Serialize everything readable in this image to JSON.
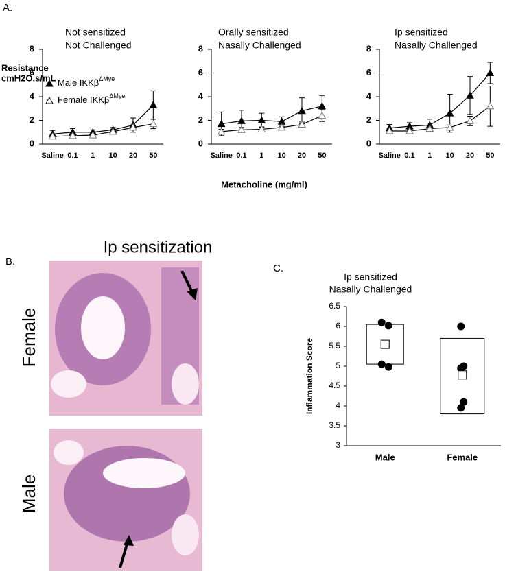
{
  "panel_labels": [
    "A.",
    "B.",
    "C."
  ],
  "histology": {
    "title": "Ip sensitization",
    "rows": [
      "Female",
      "Male"
    ]
  },
  "chart_data": [
    {
      "type": "line",
      "title": [
        "Not sensitized",
        "Not Challenged"
      ],
      "ylabel": [
        "Resistance",
        "cmH2O.s/mL"
      ],
      "categories": [
        "Saline",
        "0.1",
        "1",
        "10",
        "20",
        "50"
      ],
      "ylim": [
        0,
        8
      ],
      "yticks": [
        0,
        2,
        4,
        6,
        8
      ],
      "series": [
        {
          "name": "Male IKKβ",
          "superscript": "ΔMye",
          "color": "#000000",
          "marker": "filled",
          "values": [
            0.85,
            1.0,
            1.0,
            1.2,
            1.6,
            3.3
          ],
          "errors": [
            0.3,
            0.3,
            0.2,
            0.2,
            0.6,
            1.2
          ]
        },
        {
          "name": "Female IKKβ",
          "superscript": "ΔMye",
          "color": "#000000",
          "marker": "open",
          "values": [
            0.65,
            0.7,
            0.75,
            1.05,
            1.4,
            1.7
          ],
          "errors": [
            0.2,
            0.2,
            0.2,
            0.2,
            0.2,
            0.4
          ]
        }
      ]
    },
    {
      "type": "line",
      "title": [
        "Orally sensitized",
        "Nasally Challenged"
      ],
      "xlabel": "Metacholine (mg/ml)",
      "categories": [
        "Saline",
        "0.1",
        "1",
        "10",
        "20",
        "50"
      ],
      "ylim": [
        0,
        8
      ],
      "yticks": [
        0,
        2,
        4,
        6,
        8
      ],
      "series": [
        {
          "color": "#000000",
          "marker": "filled",
          "values": [
            1.7,
            1.95,
            2.0,
            1.9,
            2.8,
            3.2
          ],
          "errors": [
            1.0,
            0.9,
            0.6,
            0.4,
            1.1,
            0.9
          ]
        },
        {
          "color": "#000000",
          "marker": "open",
          "values": [
            1.05,
            1.2,
            1.25,
            1.4,
            1.65,
            2.4
          ],
          "errors": [
            0.2,
            0.2,
            0.2,
            0.2,
            0.2,
            0.5
          ]
        }
      ]
    },
    {
      "type": "line",
      "title": [
        "Ip sensitized",
        "Nasally Challenged"
      ],
      "categories": [
        "Saline",
        "0.1",
        "1",
        "10",
        "20",
        "50"
      ],
      "ylim": [
        0,
        8
      ],
      "yticks": [
        0,
        2,
        4,
        6,
        8
      ],
      "series": [
        {
          "color": "#000000",
          "marker": "filled",
          "values": [
            1.35,
            1.5,
            1.6,
            2.6,
            4.1,
            6.0
          ],
          "errors": [
            0.3,
            0.3,
            0.5,
            1.6,
            1.6,
            0.9
          ]
        },
        {
          "color": "#000000",
          "marker": "open",
          "values": [
            1.1,
            1.1,
            1.3,
            1.4,
            1.95,
            3.2
          ],
          "errors": [
            0.2,
            0.2,
            0.2,
            0.2,
            0.4,
            1.7
          ]
        }
      ]
    },
    {
      "type": "strip",
      "title": [
        "Ip sensitized",
        "Nasally Challenged"
      ],
      "ylabel": "Inflammation Score",
      "categories": [
        "Male",
        "Female"
      ],
      "ylim": [
        3,
        6.5
      ],
      "yticks": [
        3,
        3.5,
        4,
        4.5,
        5,
        5.5,
        6,
        6.5
      ],
      "points": [
        [
          6.1,
          6.02,
          5.05,
          4.98
        ],
        [
          6.0,
          5.0,
          4.95,
          4.1,
          3.95
        ]
      ],
      "means": [
        5.55,
        4.78
      ],
      "box_low": [
        5.05,
        3.8
      ],
      "box_high": [
        6.05,
        5.7
      ],
      "color": "#000000"
    }
  ]
}
